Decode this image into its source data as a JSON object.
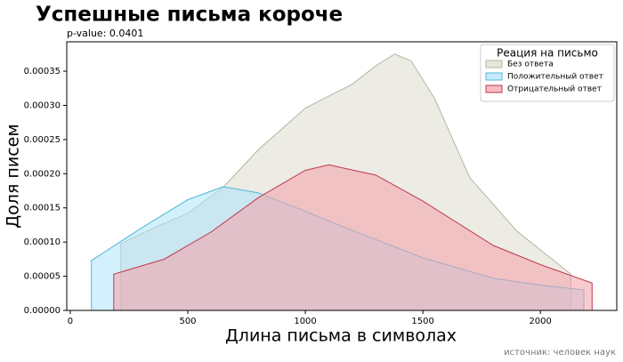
{
  "chart_data": {
    "type": "area",
    "title": "Успешные письма короче",
    "subtitle": "p-value: 0.0401",
    "xlabel": "Длина письма в символах",
    "ylabel": "Доля писем",
    "source": "источник: человек наук",
    "legend_title": "Реация на письмо",
    "legend": "upper right",
    "xlim": [
      -15,
      2325
    ],
    "xticks": [
      0,
      500,
      1000,
      1500,
      2000
    ],
    "ylim": [
      0,
      0.000393
    ],
    "yticks": [
      {
        "value": 0,
        "label": "0.00000"
      },
      {
        "value": 5e-05,
        "label": "0.00005"
      },
      {
        "value": 0.0001,
        "label": "0.00010"
      },
      {
        "value": 0.00015,
        "label": "0.00015"
      },
      {
        "value": 0.0002,
        "label": "0.00020"
      },
      {
        "value": 0.00025,
        "label": "0.00025"
      },
      {
        "value": 0.0003,
        "label": "0.00030"
      },
      {
        "value": 0.00035,
        "label": "0.00035"
      }
    ],
    "series": [
      {
        "name": "Без ответа",
        "color": "#b5b59f",
        "fill": "#dcdccf",
        "x": [
          215,
          350,
          500,
          650,
          800,
          1000,
          1200,
          1300,
          1380,
          1450,
          1550,
          1700,
          1900,
          2130
        ],
        "values": [
          9.75e-05,
          0.00012,
          0.000142,
          0.00018,
          0.000235,
          0.000296,
          0.000331,
          0.000358,
          0.000375,
          0.000365,
          0.00031,
          0.000194,
          0.000116,
          5.3e-05
        ]
      },
      {
        "name": "Положительный ответ",
        "color": "#4fb7d9",
        "fill": "#aee4fb",
        "x": [
          90,
          300,
          500,
          650,
          800,
          1000,
          1200,
          1500,
          1800,
          2000,
          2185
        ],
        "values": [
          7.3e-05,
          0.00012,
          0.000162,
          0.000181,
          0.000172,
          0.000145,
          0.000117,
          7.7e-05,
          4.7e-05,
          3.7e-05,
          3e-05
        ]
      },
      {
        "name": "Отрицательный ответ",
        "color": "#c0394b",
        "fill": "#f4a0aa",
        "x": [
          185,
          400,
          600,
          800,
          1000,
          1100,
          1300,
          1500,
          1800,
          2000,
          2220
        ],
        "values": [
          5.3e-05,
          7.5e-05,
          0.000115,
          0.000165,
          0.000205,
          0.000213,
          0.000198,
          0.00016,
          9.5e-05,
          6.7e-05,
          4e-05
        ]
      }
    ]
  }
}
